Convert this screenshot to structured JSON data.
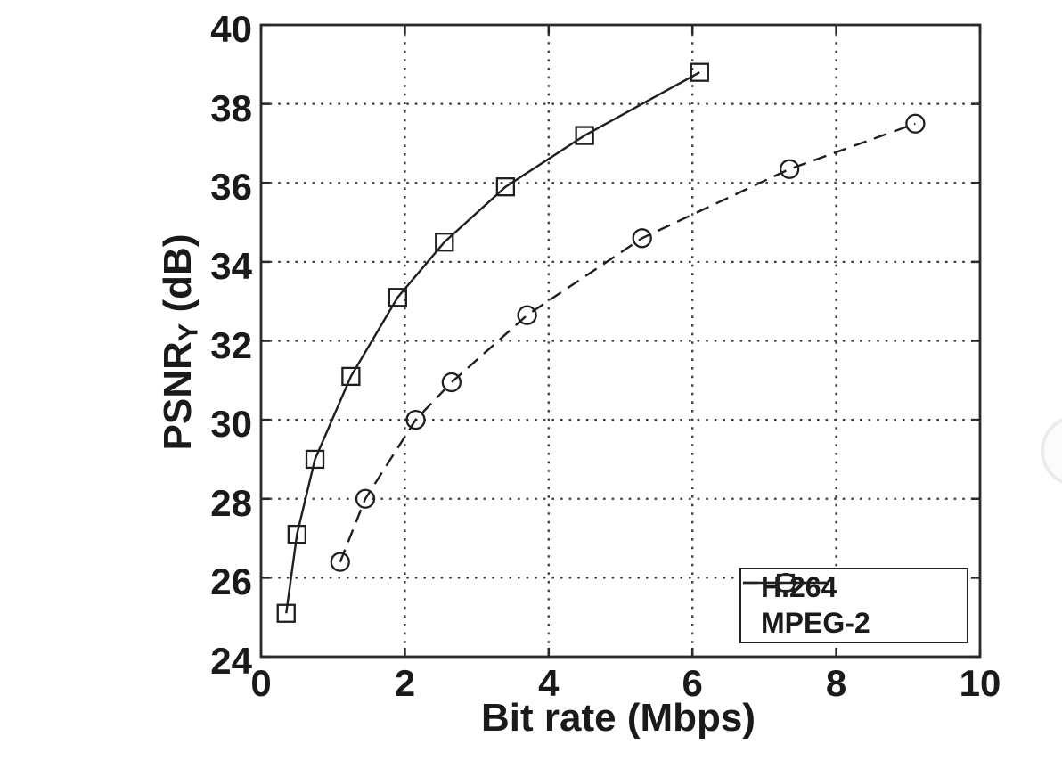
{
  "figure": {
    "xlabel": "Bit rate (Mbps)",
    "ylabel": {
      "main": "PSNR",
      "sub": "Y",
      "unit": " (dB)"
    }
  },
  "chart_data": {
    "type": "line",
    "title": "",
    "xlabel": "Bit rate (Mbps)",
    "ylabel": "PSNR_Y (dB)",
    "xlim": [
      0,
      10
    ],
    "ylim": [
      24,
      40
    ],
    "xticks": [
      0,
      2,
      4,
      6,
      8,
      10
    ],
    "yticks": [
      24,
      26,
      28,
      30,
      32,
      34,
      36,
      38,
      40
    ],
    "grid": "dotted",
    "legend_position": "lower right",
    "line_color": "#1f1f1f",
    "series": [
      {
        "name": "H.264",
        "line": "solid",
        "marker": "square",
        "x": [
          0.35,
          0.5,
          0.75,
          1.25,
          1.9,
          2.55,
          3.4,
          4.5,
          6.1
        ],
        "y": [
          25.1,
          27.1,
          29.0,
          31.1,
          33.1,
          34.5,
          35.9,
          37.2,
          38.8
        ]
      },
      {
        "name": "MPEG-2",
        "line": "dashed",
        "marker": "circle",
        "x": [
          1.1,
          1.45,
          2.15,
          2.65,
          3.7,
          5.3,
          7.35,
          9.1
        ],
        "y": [
          26.4,
          28.0,
          30.0,
          30.95,
          32.65,
          34.6,
          36.35,
          37.5
        ]
      }
    ]
  }
}
